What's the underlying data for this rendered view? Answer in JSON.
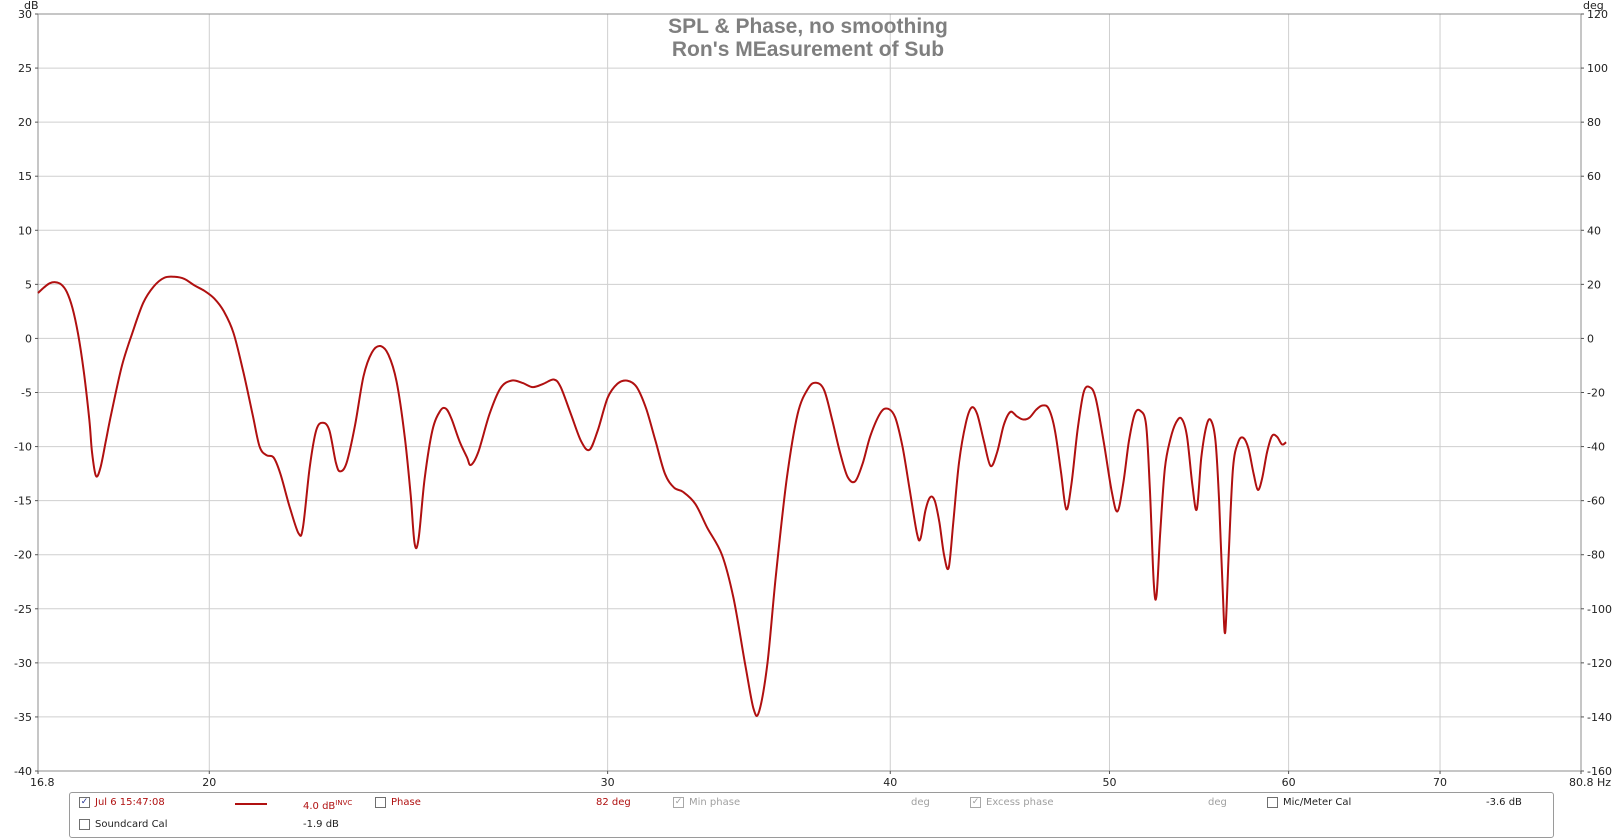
{
  "chart_data": {
    "type": "line",
    "title": "SPL & Phase, no smoothing",
    "subtitle": "Ron's MEasurement of Sub",
    "ylabel": "dB",
    "y2label": "deg",
    "xlabel": "Hz",
    "x_scale": "log",
    "xlim": [
      16.8,
      80.8
    ],
    "ylim": [
      -40,
      30
    ],
    "y2lim": [
      -160,
      120
    ],
    "x_ticks": [
      "16.8",
      "20",
      "30",
      "40",
      "50",
      "60",
      "70",
      "80.8 Hz"
    ],
    "x_tick_values": [
      16.8,
      20,
      30,
      40,
      50,
      60,
      70,
      80.8
    ],
    "y_ticks": [
      "30",
      "25",
      "20",
      "15",
      "10",
      "5",
      "0",
      "-5",
      "-10",
      "-15",
      "-20",
      "-25",
      "-30",
      "-35",
      "-40"
    ],
    "y_tick_values": [
      30,
      25,
      20,
      15,
      10,
      5,
      0,
      -5,
      -10,
      -15,
      -20,
      -25,
      -30,
      -35,
      -40
    ],
    "y2_ticks": [
      "120",
      "100",
      "80",
      "60",
      "40",
      "20",
      "0",
      "-20",
      "-40",
      "-60",
      "-80",
      "-100",
      "-120",
      "-140",
      "-160"
    ],
    "grid": true,
    "series": [
      {
        "name": "Jul 6 15:47:08",
        "color": "#b01010",
        "points": [
          [
            16.8,
            4.2
          ],
          [
            16.9,
            4.7
          ],
          [
            17.0,
            5.1
          ],
          [
            17.1,
            5.2
          ],
          [
            17.2,
            5.0
          ],
          [
            17.3,
            4.3
          ],
          [
            17.4,
            2.8
          ],
          [
            17.5,
            0.4
          ],
          [
            17.6,
            -3.0
          ],
          [
            17.7,
            -7.5
          ],
          [
            17.75,
            -10.5
          ],
          [
            17.82,
            -12.7
          ],
          [
            17.9,
            -12.0
          ],
          [
            18.0,
            -9.5
          ],
          [
            18.1,
            -7.0
          ],
          [
            18.3,
            -2.5
          ],
          [
            18.5,
            0.6
          ],
          [
            18.7,
            3.3
          ],
          [
            18.9,
            4.8
          ],
          [
            19.1,
            5.6
          ],
          [
            19.3,
            5.7
          ],
          [
            19.5,
            5.5
          ],
          [
            19.7,
            4.9
          ],
          [
            19.9,
            4.4
          ],
          [
            20.1,
            3.7
          ],
          [
            20.3,
            2.5
          ],
          [
            20.5,
            0.5
          ],
          [
            20.7,
            -3.0
          ],
          [
            20.9,
            -7.0
          ],
          [
            21.05,
            -10.0
          ],
          [
            21.2,
            -10.8
          ],
          [
            21.35,
            -11.0
          ],
          [
            21.5,
            -12.5
          ],
          [
            21.7,
            -15.5
          ],
          [
            21.9,
            -18.0
          ],
          [
            22.0,
            -17.5
          ],
          [
            22.15,
            -12.0
          ],
          [
            22.3,
            -8.5
          ],
          [
            22.45,
            -7.8
          ],
          [
            22.6,
            -8.5
          ],
          [
            22.75,
            -11.5
          ],
          [
            22.85,
            -12.3
          ],
          [
            23.0,
            -11.5
          ],
          [
            23.2,
            -8.0
          ],
          [
            23.4,
            -3.5
          ],
          [
            23.6,
            -1.3
          ],
          [
            23.8,
            -0.7
          ],
          [
            24.0,
            -1.5
          ],
          [
            24.2,
            -4.0
          ],
          [
            24.4,
            -9.0
          ],
          [
            24.55,
            -14.5
          ],
          [
            24.65,
            -19.0
          ],
          [
            24.75,
            -18.5
          ],
          [
            24.9,
            -13.0
          ],
          [
            25.1,
            -8.5
          ],
          [
            25.3,
            -6.7
          ],
          [
            25.45,
            -6.5
          ],
          [
            25.6,
            -7.5
          ],
          [
            25.8,
            -9.5
          ],
          [
            26.0,
            -11.0
          ],
          [
            26.1,
            -11.7
          ],
          [
            26.3,
            -10.5
          ],
          [
            26.6,
            -7.0
          ],
          [
            26.9,
            -4.6
          ],
          [
            27.2,
            -3.9
          ],
          [
            27.5,
            -4.1
          ],
          [
            27.8,
            -4.5
          ],
          [
            28.1,
            -4.2
          ],
          [
            28.4,
            -3.8
          ],
          [
            28.6,
            -4.5
          ],
          [
            28.9,
            -7.0
          ],
          [
            29.2,
            -9.5
          ],
          [
            29.45,
            -10.3
          ],
          [
            29.7,
            -8.5
          ],
          [
            30.0,
            -5.5
          ],
          [
            30.3,
            -4.2
          ],
          [
            30.6,
            -3.9
          ],
          [
            30.9,
            -4.5
          ],
          [
            31.2,
            -6.5
          ],
          [
            31.5,
            -9.5
          ],
          [
            31.8,
            -12.5
          ],
          [
            32.1,
            -13.8
          ],
          [
            32.4,
            -14.2
          ],
          [
            32.8,
            -15.3
          ],
          [
            33.2,
            -17.5
          ],
          [
            33.7,
            -20.0
          ],
          [
            34.1,
            -24.0
          ],
          [
            34.5,
            -30.0
          ],
          [
            34.8,
            -34.2
          ],
          [
            35.0,
            -34.5
          ],
          [
            35.3,
            -30.0
          ],
          [
            35.6,
            -22.0
          ],
          [
            36.0,
            -13.0
          ],
          [
            36.4,
            -7.0
          ],
          [
            36.8,
            -4.6
          ],
          [
            37.1,
            -4.1
          ],
          [
            37.4,
            -4.8
          ],
          [
            37.7,
            -7.5
          ],
          [
            38.0,
            -10.5
          ],
          [
            38.3,
            -12.8
          ],
          [
            38.6,
            -13.2
          ],
          [
            38.9,
            -11.5
          ],
          [
            39.2,
            -9.0
          ],
          [
            39.6,
            -6.9
          ],
          [
            39.9,
            -6.5
          ],
          [
            40.2,
            -7.3
          ],
          [
            40.5,
            -10.0
          ],
          [
            40.8,
            -14.0
          ],
          [
            41.1,
            -18.0
          ],
          [
            41.25,
            -18.5
          ],
          [
            41.45,
            -16.0
          ],
          [
            41.65,
            -14.7
          ],
          [
            41.85,
            -15.0
          ],
          [
            42.05,
            -17.0
          ],
          [
            42.25,
            -20.0
          ],
          [
            42.45,
            -21.2
          ],
          [
            42.65,
            -17.0
          ],
          [
            42.9,
            -11.5
          ],
          [
            43.2,
            -7.8
          ],
          [
            43.45,
            -6.4
          ],
          [
            43.7,
            -7.0
          ],
          [
            44.0,
            -9.5
          ],
          [
            44.3,
            -11.8
          ],
          [
            44.6,
            -10.5
          ],
          [
            44.9,
            -8.0
          ],
          [
            45.2,
            -6.8
          ],
          [
            45.5,
            -7.2
          ],
          [
            45.8,
            -7.5
          ],
          [
            46.1,
            -7.3
          ],
          [
            46.4,
            -6.6
          ],
          [
            46.7,
            -6.2
          ],
          [
            47.0,
            -6.5
          ],
          [
            47.3,
            -8.5
          ],
          [
            47.6,
            -12.5
          ],
          [
            47.85,
            -15.8
          ],
          [
            48.1,
            -13.5
          ],
          [
            48.4,
            -8.5
          ],
          [
            48.7,
            -5.0
          ],
          [
            49.0,
            -4.5
          ],
          [
            49.3,
            -5.5
          ],
          [
            49.7,
            -9.5
          ],
          [
            50.1,
            -14.0
          ],
          [
            50.4,
            -16.0
          ],
          [
            50.7,
            -13.5
          ],
          [
            51.0,
            -9.5
          ],
          [
            51.3,
            -7.0
          ],
          [
            51.6,
            -6.7
          ],
          [
            51.9,
            -8.0
          ],
          [
            52.1,
            -14.0
          ],
          [
            52.3,
            -22.5
          ],
          [
            52.45,
            -23.8
          ],
          [
            52.65,
            -18.0
          ],
          [
            52.9,
            -12.0
          ],
          [
            53.2,
            -9.3
          ],
          [
            53.5,
            -7.8
          ],
          [
            53.8,
            -7.4
          ],
          [
            54.1,
            -9.0
          ],
          [
            54.4,
            -13.5
          ],
          [
            54.65,
            -15.8
          ],
          [
            54.9,
            -11.0
          ],
          [
            55.2,
            -8.0
          ],
          [
            55.45,
            -7.6
          ],
          [
            55.7,
            -9.5
          ],
          [
            55.9,
            -15.0
          ],
          [
            56.1,
            -23.0
          ],
          [
            56.25,
            -27.2
          ],
          [
            56.45,
            -20.0
          ],
          [
            56.7,
            -12.0
          ],
          [
            57.0,
            -9.6
          ],
          [
            57.3,
            -9.2
          ],
          [
            57.6,
            -10.2
          ],
          [
            57.9,
            -12.5
          ],
          [
            58.15,
            -14.0
          ],
          [
            58.4,
            -13.0
          ],
          [
            58.7,
            -10.5
          ],
          [
            59.0,
            -9.0
          ],
          [
            59.3,
            -9.1
          ],
          [
            59.6,
            -9.8
          ],
          [
            59.85,
            -9.6
          ]
        ]
      }
    ]
  },
  "legend": {
    "measurement": {
      "label": "Jul 6 15:47:08",
      "value": "4.0 dB",
      "tag": "INVC",
      "checked": "✓"
    },
    "phase": {
      "label": "Phase",
      "value": "82 deg"
    },
    "min_phase": {
      "label": "Min phase",
      "value": "deg",
      "checked": "✓"
    },
    "excess_phase": {
      "label": "Excess phase",
      "value": "deg",
      "checked": "✓"
    },
    "mic_meter_cal": {
      "label": "Mic/Meter Cal",
      "value": "-3.6 dB"
    },
    "soundcard_cal": {
      "label": "Soundcard Cal",
      "value": "-1.9 dB"
    }
  }
}
